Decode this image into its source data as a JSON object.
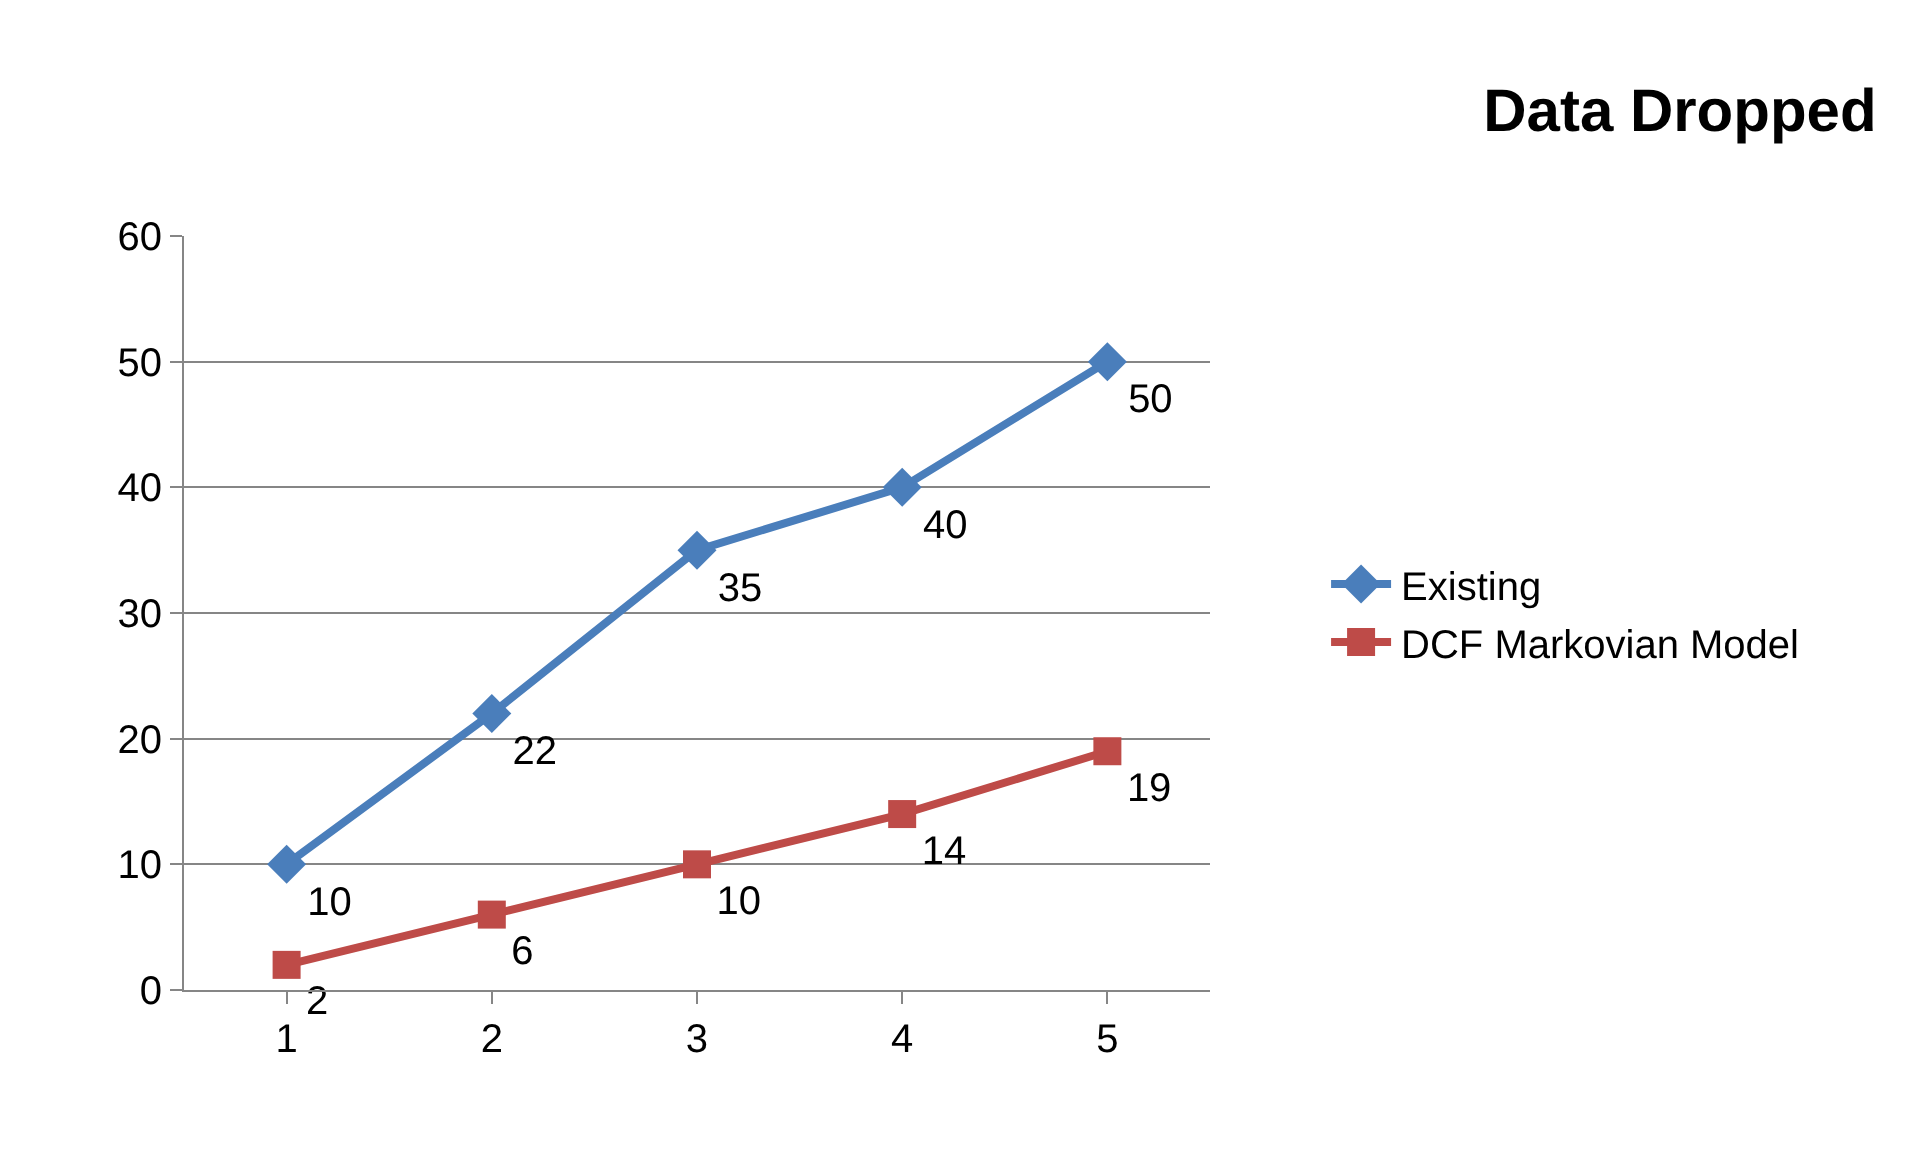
{
  "chart_data": {
    "type": "line",
    "title": "Data Dropped",
    "categories": [
      "1",
      "2",
      "3",
      "4",
      "5"
    ],
    "series": [
      {
        "name": "Existing",
        "color": "#4a7ebb",
        "marker": "diamond",
        "values": [
          10,
          22,
          35,
          40,
          50
        ]
      },
      {
        "name": "DCF Markovian Model",
        "color": "#be4b48",
        "marker": "square",
        "values": [
          2,
          6,
          10,
          14,
          19
        ]
      }
    ],
    "ylim": [
      0,
      60
    ],
    "yticks": [
      0,
      10,
      20,
      30,
      40,
      50,
      60
    ],
    "grid": "y",
    "legend": "right",
    "data_labels": true,
    "line_style": "solid"
  }
}
